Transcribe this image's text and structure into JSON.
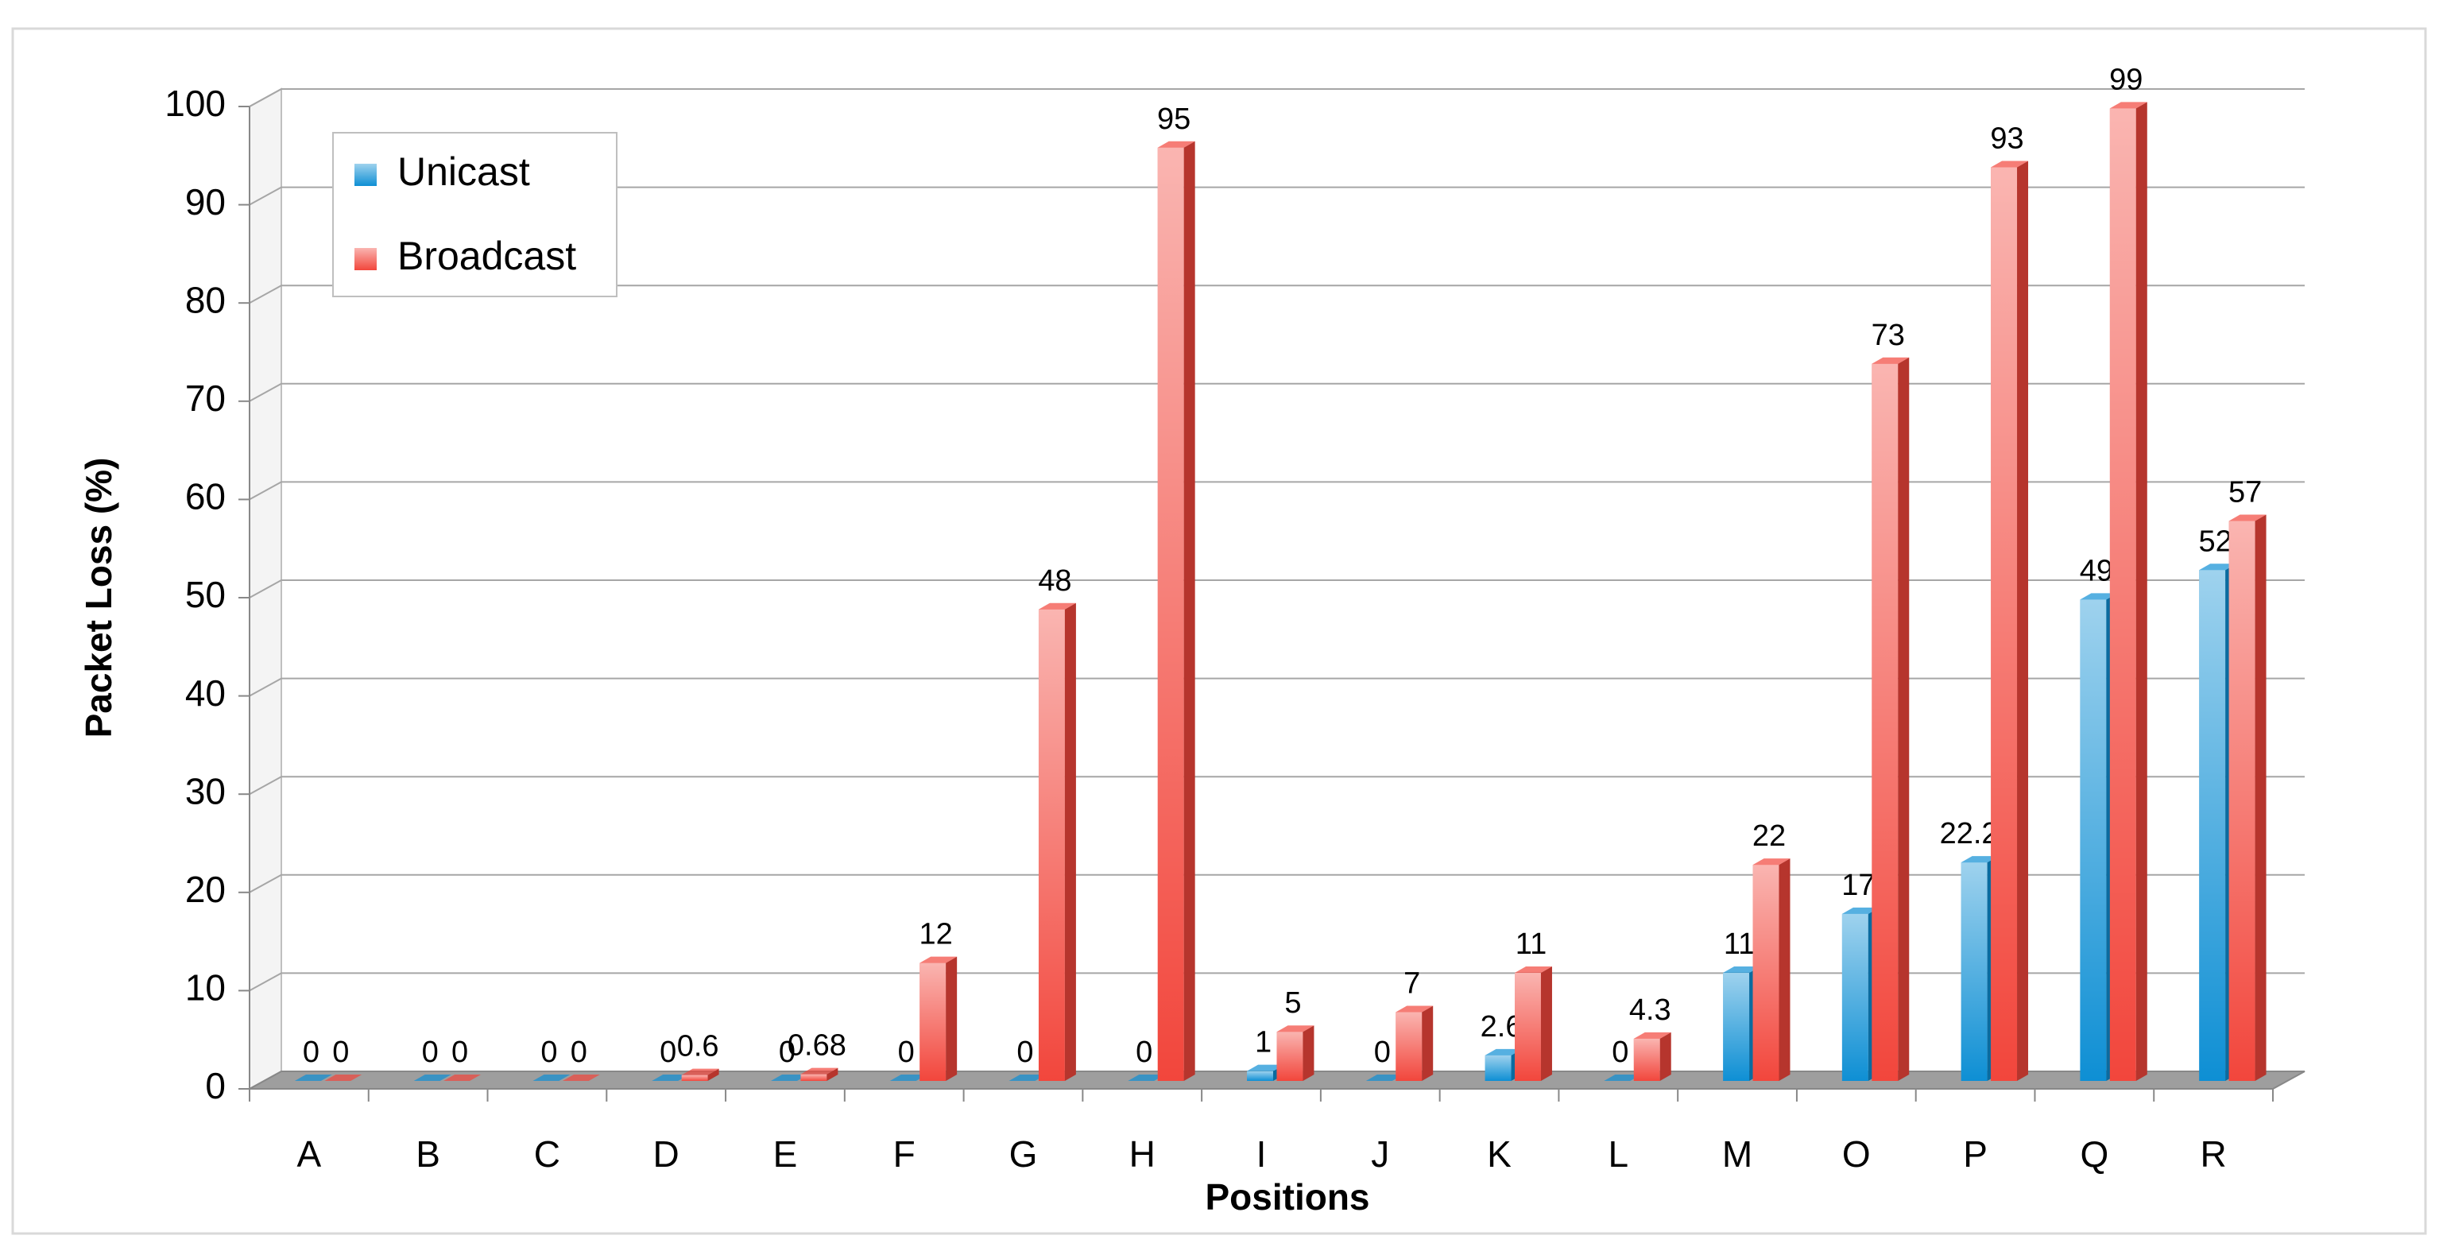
{
  "chart_data": {
    "type": "bar",
    "three_d": true,
    "x_label": "Positions",
    "y_label": "Packet Loss (%)",
    "categories": [
      "A",
      "B",
      "C",
      "D",
      "E",
      "F",
      "G",
      "H",
      "I",
      "J",
      "K",
      "L",
      "M",
      "O",
      "P",
      "Q",
      "R"
    ],
    "series": [
      {
        "name": "Unicast",
        "color": "#0e8fd4",
        "values": [
          0,
          0,
          0,
          0,
          0,
          0,
          0,
          0,
          1,
          0,
          2.6,
          0,
          11,
          17,
          22.24,
          49,
          52
        ]
      },
      {
        "name": "Broadcast",
        "color": "#f2463c",
        "values": [
          0,
          0,
          0,
          0.6,
          0.68,
          12,
          48,
          95,
          5,
          7,
          11,
          4.3,
          22,
          73,
          93,
          99,
          57
        ]
      }
    ],
    "ylim": [
      0,
      100
    ],
    "yticks": [
      0,
      10,
      20,
      30,
      40,
      50,
      60,
      70,
      80,
      90,
      100
    ],
    "grid": true,
    "legend": "top-left",
    "data_labels": true
  }
}
